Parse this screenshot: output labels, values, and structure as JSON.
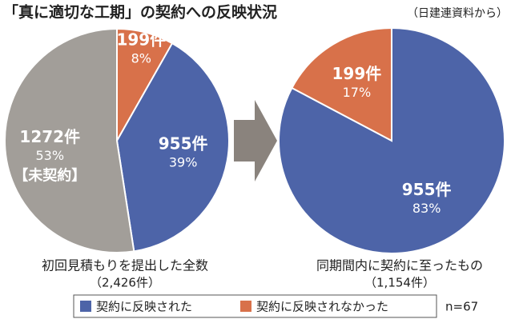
{
  "title": "「真に適切な工期」の契約への反映状況",
  "source": "（日建連資料から）",
  "note": "n=67",
  "chart_data": [
    {
      "type": "pie",
      "title": "初回見積もりを提出した全数",
      "subtitle": "（2,426件）",
      "categories": [
        "契約に反映されなかった",
        "契約に反映された",
        "【未契約】"
      ],
      "values": [
        199,
        955,
        1272
      ],
      "value_labels": [
        "199件",
        "955件",
        "1272件"
      ],
      "percents": [
        8,
        39,
        53
      ],
      "percent_labels": [
        "8%",
        "39%",
        "53%"
      ],
      "colors": [
        "#d8714a",
        "#4d64a8",
        "#a29e99"
      ]
    },
    {
      "type": "pie",
      "title": "同期間内に契約に至ったもの",
      "subtitle": "（1,154件）",
      "categories": [
        "契約に反映された",
        "契約に反映されなかった"
      ],
      "values": [
        955,
        199
      ],
      "value_labels": [
        "955件",
        "199件"
      ],
      "percents": [
        83,
        17
      ],
      "percent_labels": [
        "83%",
        "17%"
      ],
      "colors": [
        "#4d64a8",
        "#d8714a"
      ]
    }
  ]
}
